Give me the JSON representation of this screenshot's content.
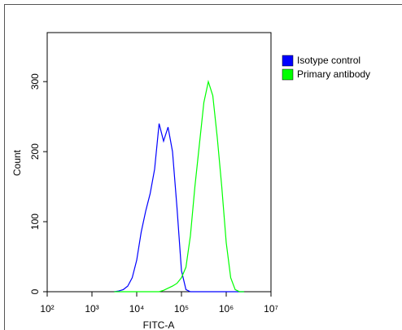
{
  "chart_data": {
    "type": "line",
    "xlabel": "FITC-A",
    "ylabel": "Count",
    "xscale": "log",
    "x": [
      3162,
      3981,
      5012,
      6310,
      7943,
      10000,
      12589,
      15849,
      19953,
      25119,
      31623,
      39811,
      50119,
      63096,
      79433,
      100000,
      125893,
      158489,
      199526,
      251189,
      316228,
      398107,
      501187,
      630957,
      794328,
      1000000,
      1258925,
      1584893,
      1995262,
      2511886
    ],
    "series": [
      {
        "name": "Isotype control",
        "color": "#0000ff",
        "values": [
          0,
          1,
          3,
          8,
          20,
          45,
          85,
          115,
          140,
          175,
          240,
          215,
          235,
          200,
          120,
          30,
          3,
          0,
          0,
          0,
          0,
          0,
          0,
          0,
          0,
          0,
          0,
          0,
          0,
          0
        ]
      },
      {
        "name": "Primary antibody",
        "color": "#00ff00",
        "values": [
          0,
          0,
          0,
          0,
          0,
          0,
          0,
          0,
          0,
          0,
          0,
          2,
          5,
          8,
          12,
          20,
          35,
          80,
          150,
          210,
          270,
          300,
          280,
          220,
          150,
          70,
          20,
          3,
          0,
          0
        ]
      }
    ],
    "xlim": [
      100,
      10000000
    ],
    "xticks": [
      {
        "value": 100,
        "label": "10²"
      },
      {
        "value": 1000,
        "label": "10³"
      },
      {
        "value": 10000,
        "label": "10⁴"
      },
      {
        "value": 100000,
        "label": "10⁵"
      },
      {
        "value": 1000000,
        "label": "10⁶"
      },
      {
        "value": 10000000,
        "label": "10⁷"
      }
    ],
    "ylim": [
      0,
      370
    ],
    "yticks": [
      0,
      100,
      200,
      300
    ],
    "grid": false,
    "legend": "upper right"
  }
}
